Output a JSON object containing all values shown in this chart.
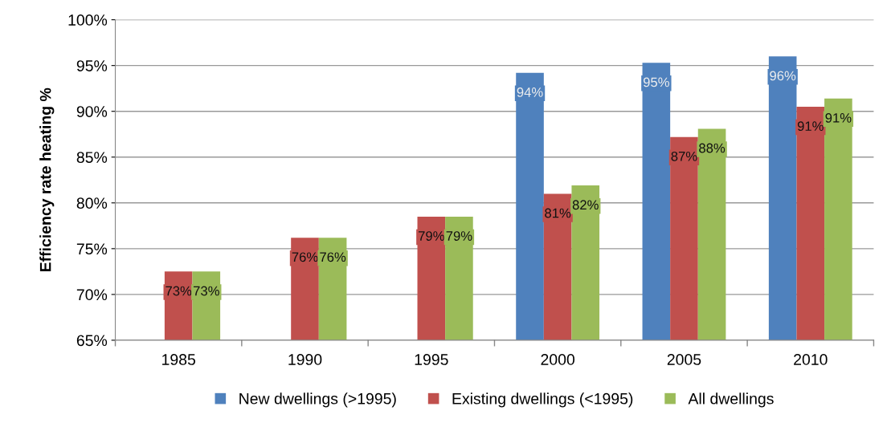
{
  "chart_data": {
    "type": "bar",
    "ylabel": "Efficiency rate heating %",
    "categories": [
      "1985",
      "1990",
      "1995",
      "2000",
      "2005",
      "2010"
    ],
    "series": [
      {
        "name": "New dwellings (>1995)",
        "color": "#4f81bd",
        "values": [
          null,
          null,
          null,
          94.2,
          95.3,
          96.0
        ],
        "value_labels": [
          null,
          null,
          null,
          "94%",
          "95%",
          "96%"
        ]
      },
      {
        "name": "Existing dwellings (<1995)",
        "color": "#c0504d",
        "values": [
          72.5,
          76.2,
          78.5,
          81.0,
          87.2,
          90.5
        ],
        "value_labels": [
          "73%",
          "76%",
          "79%",
          "81%",
          "87%",
          "91%"
        ]
      },
      {
        "name": "All dwellings",
        "color": "#9bbb59",
        "values": [
          72.5,
          76.2,
          78.5,
          81.9,
          88.1,
          91.4
        ],
        "value_labels": [
          "73%",
          "76%",
          "79%",
          "82%",
          "88%",
          "91%"
        ]
      }
    ],
    "ylim": [
      65,
      100
    ],
    "yticks": [
      {
        "value": 65,
        "label": "65%"
      },
      {
        "value": 70,
        "label": "70%"
      },
      {
        "value": 75,
        "label": "75%"
      },
      {
        "value": 80,
        "label": "80%"
      },
      {
        "value": 85,
        "label": "85%"
      },
      {
        "value": 90,
        "label": "90%"
      },
      {
        "value": 95,
        "label": "95%"
      },
      {
        "value": 100,
        "label": "100%"
      }
    ],
    "grid": "y",
    "legend": "bottom"
  }
}
